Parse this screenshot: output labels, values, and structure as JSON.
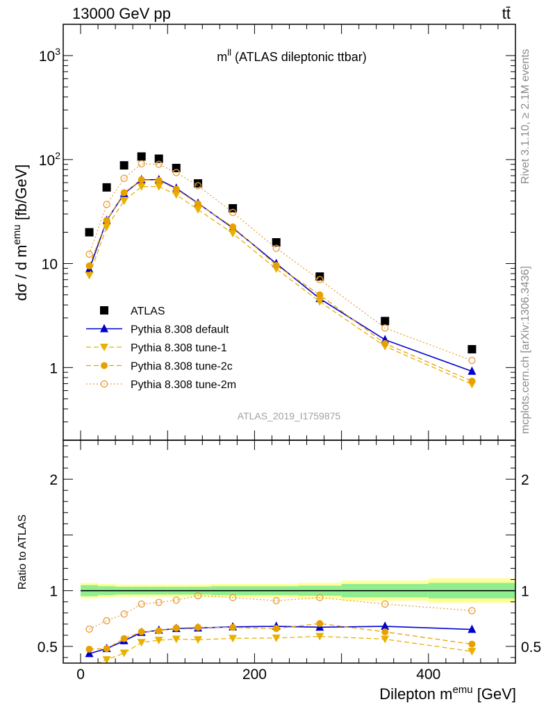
{
  "header": {
    "energy_label": "13000 GeV pp",
    "process_label": "tt̄"
  },
  "side_text": {
    "rivet": "Rivet 3.1.10, ≥ 2.1M events",
    "mcplots": "mcplots.cern.ch [arXiv:1306.3436]"
  },
  "chart_data": [
    {
      "type": "scatter",
      "title": "m^ll (ATLAS dileptonic ttbar)",
      "title_main": "m",
      "title_sup": "ll",
      "title_rest": " (ATLAS dileptonic ttbar)",
      "watermark": "ATLAS_2019_I1759875",
      "ylabel": "dσ / d m^emu [fb/GeV]",
      "ylabel_pre": "dσ / d m",
      "ylabel_sup": "emu",
      "ylabel_post": " [fb/GeV]",
      "yscale": "log",
      "ylim": [
        0.2,
        2000
      ],
      "xlim": [
        -20,
        500
      ],
      "ytick_labels": [
        {
          "value": 1,
          "label": "1"
        },
        {
          "value": 10,
          "label": "10"
        },
        {
          "value": 100,
          "label": "10",
          "sup": "2"
        },
        {
          "value": 1000,
          "label": "10",
          "sup": "3"
        }
      ],
      "legend_position": "lower-left",
      "x": [
        10,
        30,
        50,
        70,
        90,
        110,
        135,
        175,
        225,
        275,
        350,
        450
      ],
      "x_edges": [
        0,
        20,
        40,
        60,
        80,
        100,
        120,
        150,
        200,
        250,
        300,
        400,
        500
      ],
      "series": [
        {
          "name": "ATLAS",
          "color": "#000000",
          "marker": "square",
          "line": "none",
          "values": [
            20,
            54,
            88,
            107,
            102,
            83,
            59,
            34,
            16,
            7.5,
            2.8,
            1.5
          ]
        },
        {
          "name": "Pythia 8.308 default",
          "color": "#0000cc",
          "marker": "triangle-up",
          "line": "solid",
          "values": [
            8.8,
            26,
            47,
            64,
            64,
            53,
            38,
            22,
            10,
            4.6,
            1.85,
            0.92
          ]
        },
        {
          "name": "Pythia 8.308 tune-1",
          "color": "#e8b000",
          "marker": "triangle-down",
          "line": "dashed",
          "values": [
            7.7,
            22.5,
            40,
            55,
            55,
            46,
            33,
            19.5,
            8.9,
            4.3,
            1.6,
            0.69
          ]
        },
        {
          "name": "Pythia 8.308 tune-2c",
          "color": "#e8a000",
          "marker": "circle",
          "line": "dashed",
          "values": [
            9.5,
            26,
            48,
            64,
            63,
            52,
            37.5,
            22.5,
            9.6,
            5.0,
            1.7,
            0.74
          ]
        },
        {
          "name": "Pythia 8.308 tune-2m",
          "color": "#e8a040",
          "marker": "open-circle",
          "line": "dotted",
          "values": [
            12.3,
            37,
            66,
            91,
            90,
            75,
            56,
            31,
            14,
            7.0,
            2.4,
            1.17
          ]
        }
      ]
    },
    {
      "type": "scatter",
      "xlabel": "Dilepton m^emu [GeV]",
      "xlabel_pre": "Dilepton m",
      "xlabel_sup": "emu",
      "xlabel_post": " [GeV]",
      "ylabel": "Ratio to ATLAS",
      "ylim": [
        0.35,
        2.35
      ],
      "xlim": [
        -20,
        500
      ],
      "ytick_labels": [
        {
          "value": 0.5,
          "label": "0.5"
        },
        {
          "value": 1,
          "label": "1"
        },
        {
          "value": 2,
          "label": "2"
        }
      ],
      "xtick_labels": [
        {
          "value": 0,
          "label": "0"
        },
        {
          "value": 200,
          "label": "200"
        },
        {
          "value": 400,
          "label": "400"
        }
      ],
      "x": [
        10,
        30,
        50,
        70,
        90,
        110,
        135,
        175,
        225,
        275,
        350,
        450
      ],
      "band_inner": [
        0.05,
        0.04,
        0.035,
        0.035,
        0.035,
        0.035,
        0.035,
        0.04,
        0.04,
        0.045,
        0.06,
        0.07
      ],
      "band_outer": [
        0.07,
        0.06,
        0.055,
        0.055,
        0.055,
        0.055,
        0.055,
        0.06,
        0.06,
        0.07,
        0.09,
        0.11
      ],
      "band_colors": {
        "inner": "#90ee90",
        "outer": "#ffff99"
      },
      "series": [
        {
          "name": "Pythia 8.308 default",
          "color": "#0000cc",
          "marker": "triangle-up",
          "line": "solid",
          "values": [
            0.435,
            0.48,
            0.55,
            0.625,
            0.645,
            0.66,
            0.665,
            0.675,
            0.68,
            0.672,
            0.68,
            0.652
          ]
        },
        {
          "name": "Pythia 8.308 tune-1",
          "color": "#e8b000",
          "marker": "triangle-down",
          "line": "dashed",
          "values": [
            0.32,
            0.38,
            0.44,
            0.535,
            0.555,
            0.565,
            0.56,
            0.572,
            0.575,
            0.59,
            0.565,
            0.455
          ]
        },
        {
          "name": "Pythia 8.308 tune-2c",
          "color": "#e8a000",
          "marker": "circle",
          "line": "dashed",
          "values": [
            0.475,
            0.48,
            0.57,
            0.63,
            0.64,
            0.665,
            0.67,
            0.67,
            0.66,
            0.705,
            0.63,
            0.52
          ]
        },
        {
          "name": "Pythia 8.308 tune-2m",
          "color": "#e8a040",
          "marker": "open-circle",
          "line": "dotted",
          "values": [
            0.655,
            0.73,
            0.79,
            0.88,
            0.895,
            0.915,
            0.955,
            0.938,
            0.91,
            0.938,
            0.88,
            0.82
          ]
        }
      ]
    }
  ]
}
